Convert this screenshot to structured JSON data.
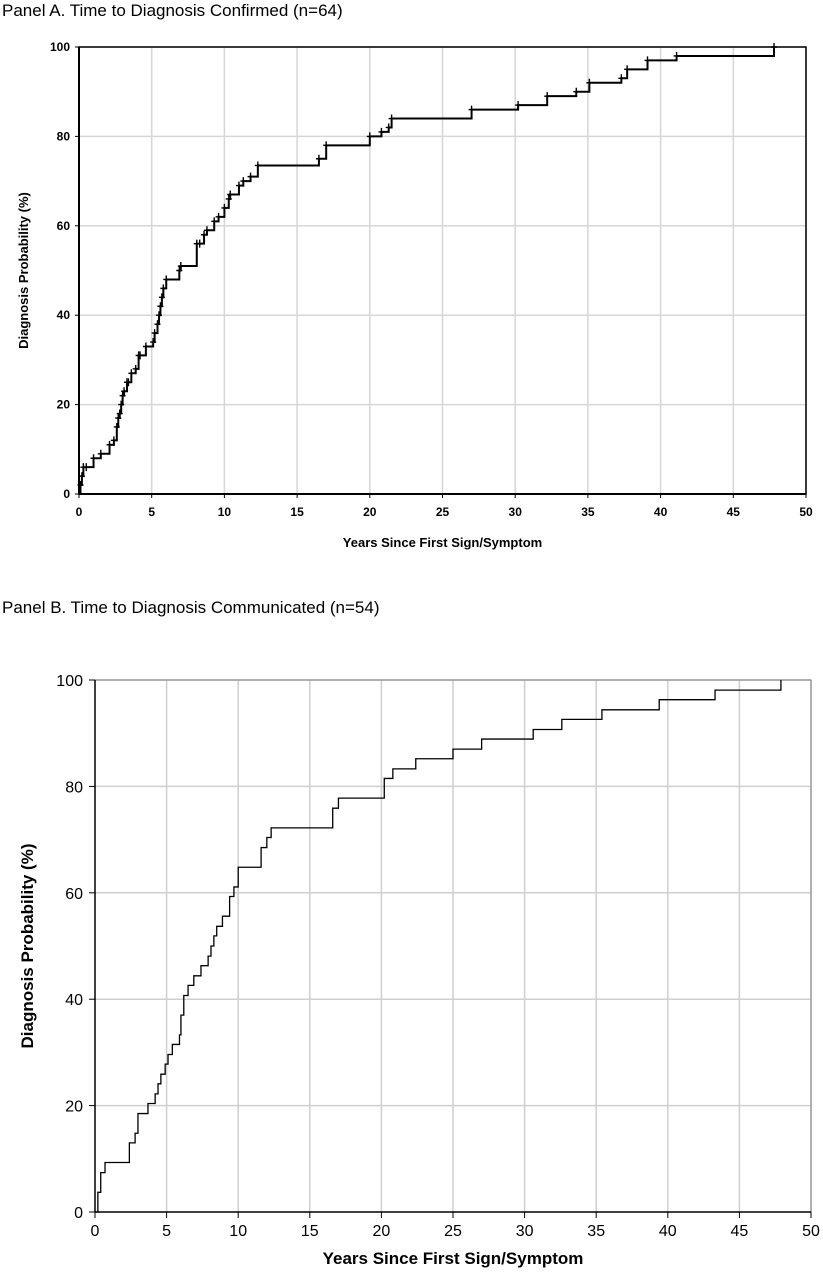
{
  "chart_data": [
    {
      "type": "line",
      "title": "Panel A.  Time to Diagnosis Confirmed (n=64)",
      "xlabel": "Years Since First Sign/Symptom",
      "ylabel": "Diagnosis Probability (%)",
      "xlim": [
        0,
        50
      ],
      "ylim": [
        0,
        100
      ],
      "x_ticks": [
        "0",
        "5",
        "10",
        "15",
        "20",
        "25",
        "30",
        "35",
        "40",
        "45",
        "50"
      ],
      "y_ticks": [
        "0",
        "20",
        "40",
        "60",
        "80",
        "100"
      ],
      "grid": true,
      "step": true,
      "censor_marks": true,
      "series": [
        {
          "x": [
            0,
            0.1,
            0.2,
            0.3,
            0.5,
            1.0,
            1.5,
            2.1,
            2.4,
            2.6,
            2.7,
            2.8,
            2.9,
            3.0,
            3.1,
            3.3,
            3.4,
            3.6,
            3.9,
            4.1,
            4.2,
            4.6,
            5.1,
            5.2,
            5.4,
            5.5,
            5.6,
            5.7,
            5.8,
            6.0,
            6.9,
            7.0,
            8.1,
            8.3,
            8.6,
            8.8,
            9.3,
            9.6,
            10.0,
            10.3,
            10.4,
            11.0,
            11.3,
            11.8,
            12.3,
            16.5,
            17.0,
            20.0,
            20.8,
            21.3,
            21.5,
            27.0,
            30.2,
            32.2,
            34.2,
            35.1,
            37.3,
            37.7,
            39.1,
            41.1,
            47.8
          ],
          "y": [
            0,
            2,
            4,
            6,
            6,
            8,
            9,
            11,
            12,
            15,
            17,
            18,
            20,
            22,
            23,
            25,
            25,
            27,
            28,
            31,
            31,
            33,
            34,
            36,
            38,
            40,
            42,
            44,
            46,
            48,
            50,
            51,
            56,
            56,
            58,
            59,
            61,
            62,
            64,
            66,
            67,
            69,
            70,
            71,
            73.5,
            75,
            78,
            80,
            81,
            82,
            84,
            86,
            87,
            89,
            90,
            92,
            93,
            95,
            97,
            98,
            100
          ]
        }
      ]
    },
    {
      "type": "line",
      "title": "Panel B. Time to Diagnosis Communicated (n=54)",
      "xlabel": "Years Since First Sign/Symptom",
      "ylabel": "Diagnosis Probability (%)",
      "xlim": [
        0,
        50
      ],
      "ylim": [
        0,
        100
      ],
      "x_ticks": [
        "0",
        "5",
        "10",
        "15",
        "20",
        "25",
        "30",
        "35",
        "40",
        "45",
        "50"
      ],
      "y_ticks": [
        "0",
        "20",
        "40",
        "60",
        "80",
        "100"
      ],
      "grid": true,
      "step": true,
      "censor_marks": false,
      "series": [
        {
          "x": [
            0,
            0.2,
            0.4,
            0.7,
            2.4,
            2.8,
            3.0,
            3.3,
            3.7,
            4.2,
            4.4,
            4.6,
            4.9,
            5.1,
            5.4,
            5.9,
            6.0,
            6.2,
            6.5,
            6.9,
            7.4,
            7.9,
            8.1,
            8.3,
            8.5,
            8.9,
            9.4,
            9.7,
            10.0,
            11.6,
            12.0,
            12.3,
            16.6,
            17.0,
            20.2,
            20.8,
            22.4,
            25.0,
            27.0,
            30.6,
            32.6,
            35.4,
            39.4,
            43.3,
            47.9
          ],
          "y": [
            0,
            3.7,
            7.4,
            9.3,
            13.0,
            14.8,
            18.5,
            18.5,
            20.4,
            22.2,
            24.1,
            25.9,
            27.8,
            29.6,
            31.5,
            33.3,
            37.0,
            40.7,
            42.6,
            44.4,
            46.3,
            48.1,
            50.0,
            51.9,
            53.7,
            55.6,
            59.3,
            61.1,
            64.8,
            68.5,
            70.4,
            72.2,
            75.9,
            77.8,
            81.5,
            83.3,
            85.2,
            87.0,
            88.9,
            90.7,
            92.6,
            94.4,
            96.3,
            98.1,
            100
          ]
        }
      ]
    }
  ]
}
